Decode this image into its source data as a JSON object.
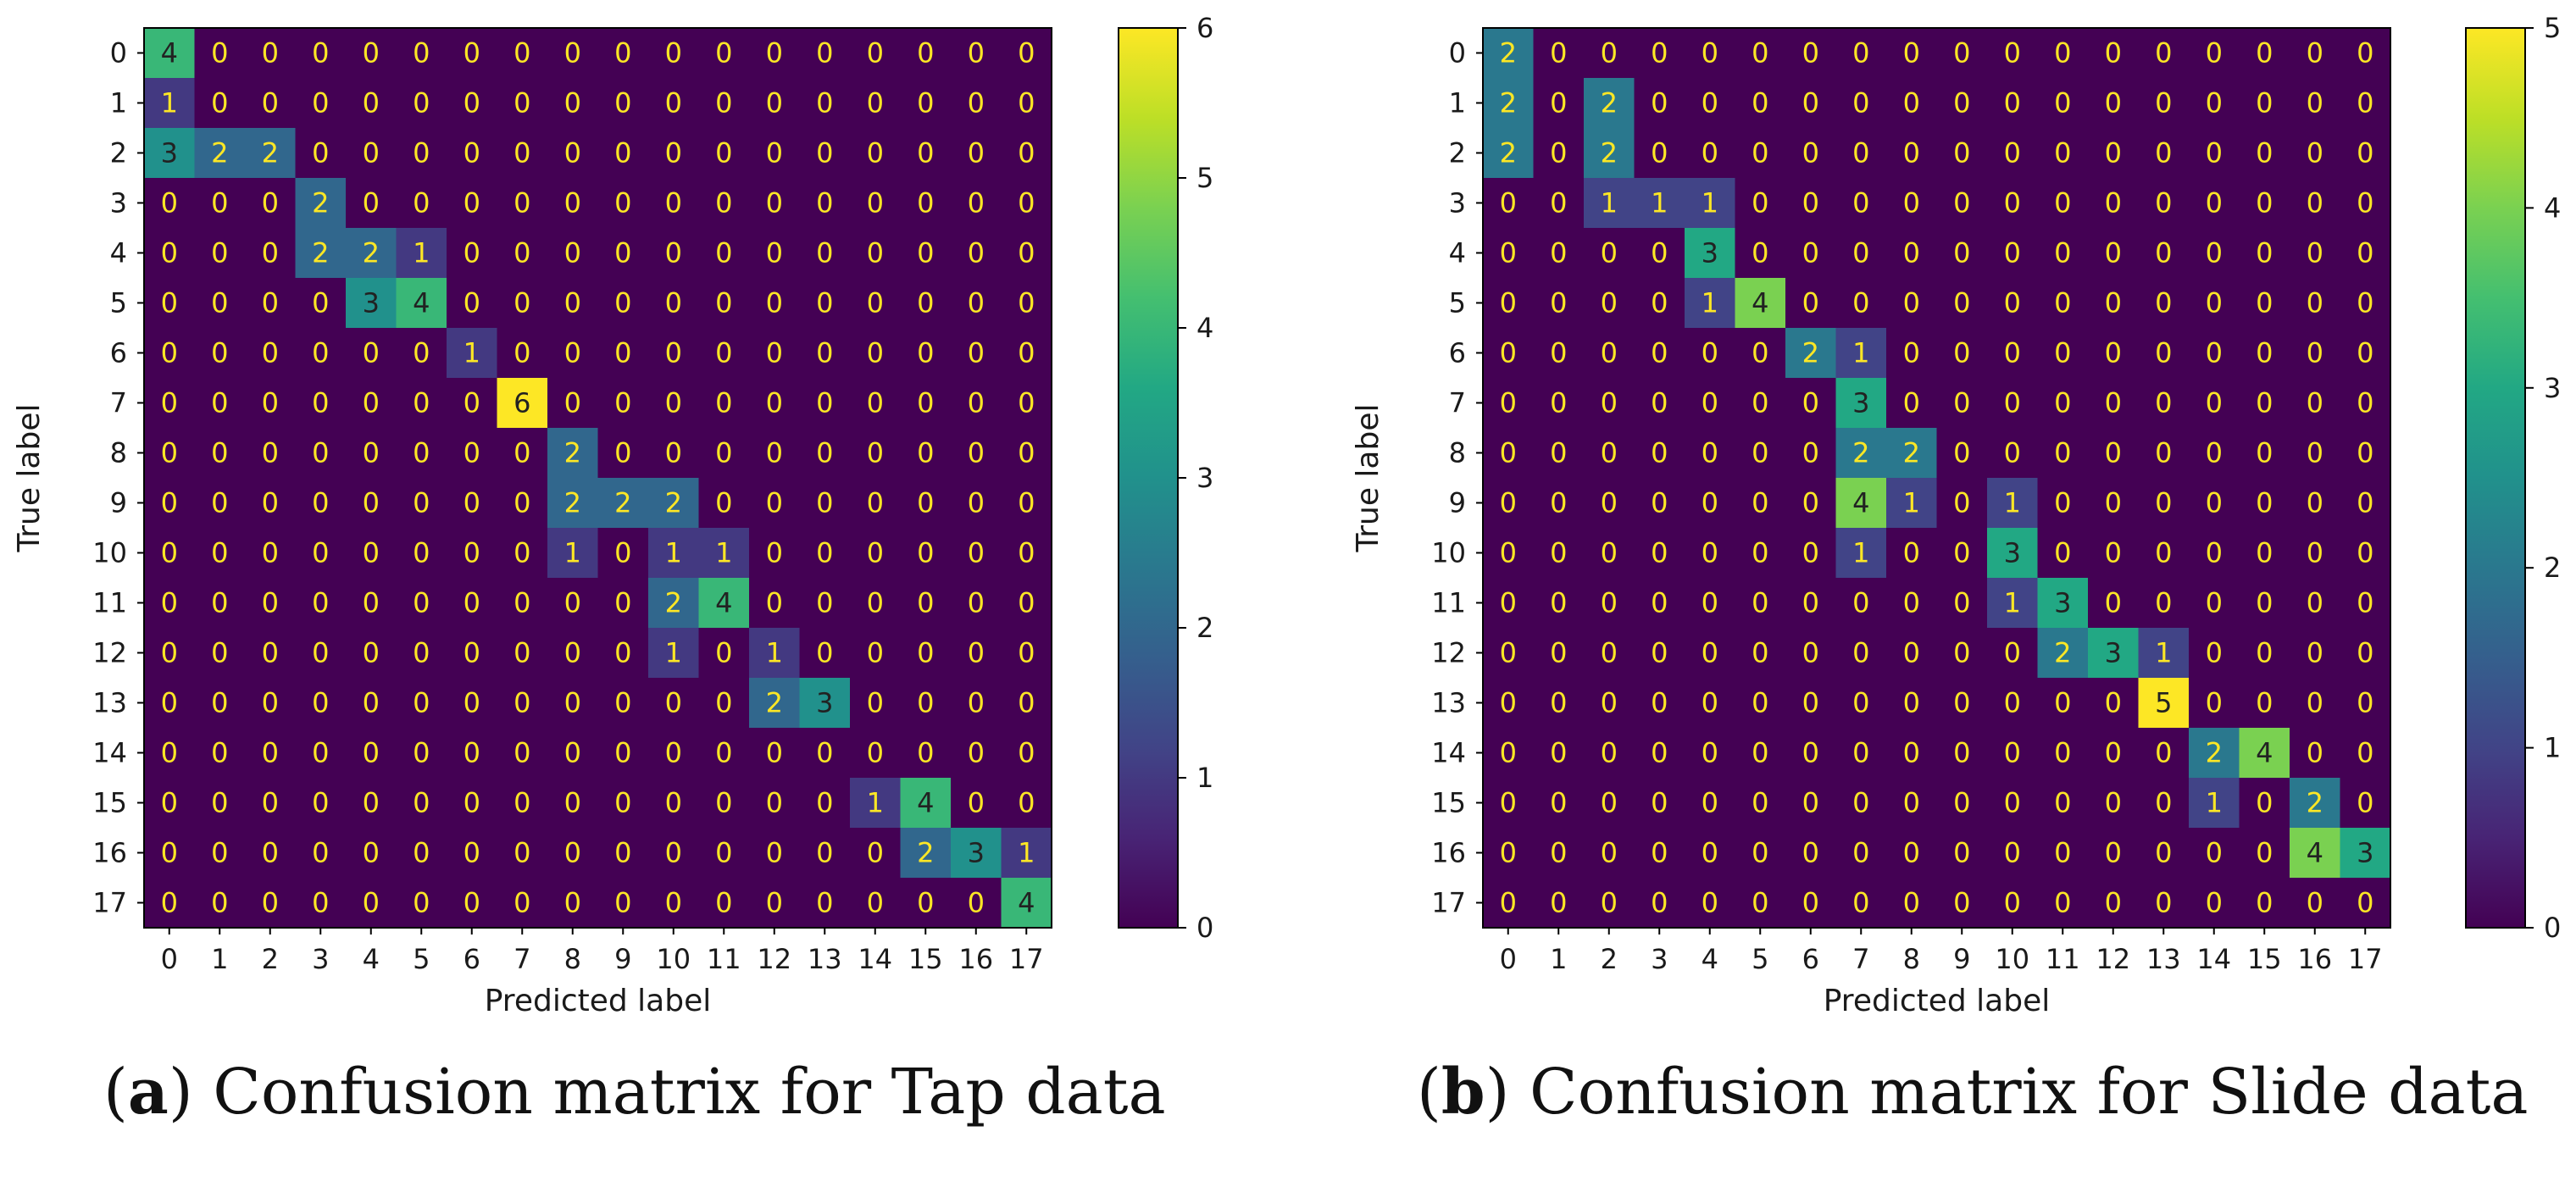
{
  "chart_data": [
    {
      "type": "heatmap",
      "title": "Confusion matrix for Tap data",
      "caption": {
        "letter": "a",
        "text": "Confusion matrix for Tap data"
      },
      "xlabel": "Predicted label",
      "ylabel": "True label",
      "x_tick_labels": [
        "0",
        "1",
        "2",
        "3",
        "4",
        "5",
        "6",
        "7",
        "8",
        "9",
        "10",
        "11",
        "12",
        "13",
        "14",
        "15",
        "16",
        "17"
      ],
      "y_tick_labels": [
        "0",
        "1",
        "2",
        "3",
        "4",
        "5",
        "6",
        "7",
        "8",
        "9",
        "10",
        "11",
        "12",
        "13",
        "14",
        "15",
        "16",
        "17"
      ],
      "colorbar": {
        "min": 0,
        "max": 6,
        "ticks": [
          0,
          1,
          2,
          3,
          4,
          5,
          6
        ],
        "colormap": "viridis"
      },
      "matrix": [
        [
          4,
          0,
          0,
          0,
          0,
          0,
          0,
          0,
          0,
          0,
          0,
          0,
          0,
          0,
          0,
          0,
          0,
          0
        ],
        [
          1,
          0,
          0,
          0,
          0,
          0,
          0,
          0,
          0,
          0,
          0,
          0,
          0,
          0,
          0,
          0,
          0,
          0
        ],
        [
          3,
          2,
          2,
          0,
          0,
          0,
          0,
          0,
          0,
          0,
          0,
          0,
          0,
          0,
          0,
          0,
          0,
          0
        ],
        [
          0,
          0,
          0,
          2,
          0,
          0,
          0,
          0,
          0,
          0,
          0,
          0,
          0,
          0,
          0,
          0,
          0,
          0
        ],
        [
          0,
          0,
          0,
          2,
          2,
          1,
          0,
          0,
          0,
          0,
          0,
          0,
          0,
          0,
          0,
          0,
          0,
          0
        ],
        [
          0,
          0,
          0,
          0,
          3,
          4,
          0,
          0,
          0,
          0,
          0,
          0,
          0,
          0,
          0,
          0,
          0,
          0
        ],
        [
          0,
          0,
          0,
          0,
          0,
          0,
          1,
          0,
          0,
          0,
          0,
          0,
          0,
          0,
          0,
          0,
          0,
          0
        ],
        [
          0,
          0,
          0,
          0,
          0,
          0,
          0,
          6,
          0,
          0,
          0,
          0,
          0,
          0,
          0,
          0,
          0,
          0
        ],
        [
          0,
          0,
          0,
          0,
          0,
          0,
          0,
          0,
          2,
          0,
          0,
          0,
          0,
          0,
          0,
          0,
          0,
          0
        ],
        [
          0,
          0,
          0,
          0,
          0,
          0,
          0,
          0,
          2,
          2,
          2,
          0,
          0,
          0,
          0,
          0,
          0,
          0
        ],
        [
          0,
          0,
          0,
          0,
          0,
          0,
          0,
          0,
          1,
          0,
          1,
          1,
          0,
          0,
          0,
          0,
          0,
          0
        ],
        [
          0,
          0,
          0,
          0,
          0,
          0,
          0,
          0,
          0,
          0,
          2,
          4,
          0,
          0,
          0,
          0,
          0,
          0
        ],
        [
          0,
          0,
          0,
          0,
          0,
          0,
          0,
          0,
          0,
          0,
          1,
          0,
          1,
          0,
          0,
          0,
          0,
          0
        ],
        [
          0,
          0,
          0,
          0,
          0,
          0,
          0,
          0,
          0,
          0,
          0,
          0,
          2,
          3,
          0,
          0,
          0,
          0
        ],
        [
          0,
          0,
          0,
          0,
          0,
          0,
          0,
          0,
          0,
          0,
          0,
          0,
          0,
          0,
          0,
          0,
          0,
          0
        ],
        [
          0,
          0,
          0,
          0,
          0,
          0,
          0,
          0,
          0,
          0,
          0,
          0,
          0,
          0,
          1,
          4,
          0,
          0
        ],
        [
          0,
          0,
          0,
          0,
          0,
          0,
          0,
          0,
          0,
          0,
          0,
          0,
          0,
          0,
          0,
          2,
          3,
          1
        ],
        [
          0,
          0,
          0,
          0,
          0,
          0,
          0,
          0,
          0,
          0,
          0,
          0,
          0,
          0,
          0,
          0,
          0,
          4
        ]
      ]
    },
    {
      "type": "heatmap",
      "title": "Confusion matrix for Slide data",
      "caption": {
        "letter": "b",
        "text": "Confusion matrix for Slide data"
      },
      "xlabel": "Predicted label",
      "ylabel": "True label",
      "x_tick_labels": [
        "0",
        "1",
        "2",
        "3",
        "4",
        "5",
        "6",
        "7",
        "8",
        "9",
        "10",
        "11",
        "12",
        "13",
        "14",
        "15",
        "16",
        "17"
      ],
      "y_tick_labels": [
        "0",
        "1",
        "2",
        "3",
        "4",
        "5",
        "6",
        "7",
        "8",
        "9",
        "10",
        "11",
        "12",
        "13",
        "14",
        "15",
        "16",
        "17"
      ],
      "colorbar": {
        "min": 0,
        "max": 5,
        "ticks": [
          0,
          1,
          2,
          3,
          4,
          5
        ],
        "colormap": "viridis"
      },
      "matrix": [
        [
          2,
          0,
          0,
          0,
          0,
          0,
          0,
          0,
          0,
          0,
          0,
          0,
          0,
          0,
          0,
          0,
          0,
          0
        ],
        [
          2,
          0,
          2,
          0,
          0,
          0,
          0,
          0,
          0,
          0,
          0,
          0,
          0,
          0,
          0,
          0,
          0,
          0
        ],
        [
          2,
          0,
          2,
          0,
          0,
          0,
          0,
          0,
          0,
          0,
          0,
          0,
          0,
          0,
          0,
          0,
          0,
          0
        ],
        [
          0,
          0,
          1,
          1,
          1,
          0,
          0,
          0,
          0,
          0,
          0,
          0,
          0,
          0,
          0,
          0,
          0,
          0
        ],
        [
          0,
          0,
          0,
          0,
          3,
          0,
          0,
          0,
          0,
          0,
          0,
          0,
          0,
          0,
          0,
          0,
          0,
          0
        ],
        [
          0,
          0,
          0,
          0,
          1,
          4,
          0,
          0,
          0,
          0,
          0,
          0,
          0,
          0,
          0,
          0,
          0,
          0
        ],
        [
          0,
          0,
          0,
          0,
          0,
          0,
          2,
          1,
          0,
          0,
          0,
          0,
          0,
          0,
          0,
          0,
          0,
          0
        ],
        [
          0,
          0,
          0,
          0,
          0,
          0,
          0,
          3,
          0,
          0,
          0,
          0,
          0,
          0,
          0,
          0,
          0,
          0
        ],
        [
          0,
          0,
          0,
          0,
          0,
          0,
          0,
          2,
          2,
          0,
          0,
          0,
          0,
          0,
          0,
          0,
          0,
          0
        ],
        [
          0,
          0,
          0,
          0,
          0,
          0,
          0,
          4,
          1,
          0,
          1,
          0,
          0,
          0,
          0,
          0,
          0,
          0
        ],
        [
          0,
          0,
          0,
          0,
          0,
          0,
          0,
          1,
          0,
          0,
          3,
          0,
          0,
          0,
          0,
          0,
          0,
          0
        ],
        [
          0,
          0,
          0,
          0,
          0,
          0,
          0,
          0,
          0,
          0,
          1,
          3,
          0,
          0,
          0,
          0,
          0,
          0
        ],
        [
          0,
          0,
          0,
          0,
          0,
          0,
          0,
          0,
          0,
          0,
          0,
          2,
          3,
          1,
          0,
          0,
          0,
          0
        ],
        [
          0,
          0,
          0,
          0,
          0,
          0,
          0,
          0,
          0,
          0,
          0,
          0,
          0,
          5,
          0,
          0,
          0,
          0
        ],
        [
          0,
          0,
          0,
          0,
          0,
          0,
          0,
          0,
          0,
          0,
          0,
          0,
          0,
          0,
          2,
          4,
          0,
          0
        ],
        [
          0,
          0,
          0,
          0,
          0,
          0,
          0,
          0,
          0,
          0,
          0,
          0,
          0,
          0,
          1,
          0,
          2,
          0
        ],
        [
          0,
          0,
          0,
          0,
          0,
          0,
          0,
          0,
          0,
          0,
          0,
          0,
          0,
          0,
          0,
          0,
          4,
          3
        ],
        [
          0,
          0,
          0,
          0,
          0,
          0,
          0,
          0,
          0,
          0,
          0,
          0,
          0,
          0,
          0,
          0,
          0,
          0
        ]
      ]
    }
  ]
}
